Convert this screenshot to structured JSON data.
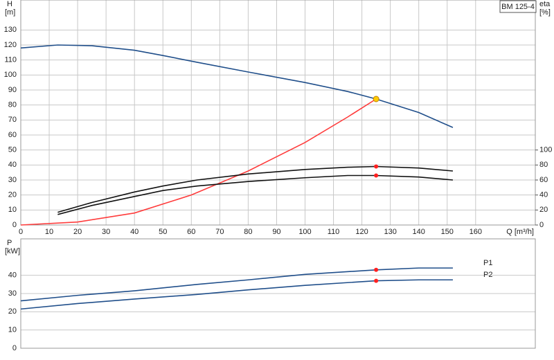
{
  "chart_data": [
    {
      "type": "line",
      "y_label": "H",
      "y_unit": "[m]",
      "y2_label": "eta",
      "y2_unit": "[%]",
      "x_label": "Q [m³/h]",
      "badge": "BM 125-4",
      "xlim": [
        0,
        181
      ],
      "xticks": [
        0,
        10,
        20,
        30,
        40,
        50,
        60,
        70,
        80,
        90,
        100,
        110,
        120,
        130,
        140,
        150,
        160
      ],
      "ylim": [
        0,
        150
      ],
      "yticks": [
        0,
        10,
        20,
        30,
        40,
        50,
        60,
        70,
        80,
        90,
        100,
        110,
        120,
        130
      ],
      "y2lim": [
        0,
        300
      ],
      "y2ticks": [
        0,
        20,
        40,
        60,
        80,
        100
      ],
      "grid": true,
      "series": [
        {
          "color": "#1f4e8a",
          "x": [
            0,
            13,
            25,
            40,
            50,
            62,
            80,
            100,
            115,
            125,
            140,
            152
          ],
          "values": [
            118,
            120,
            119.5,
            116.5,
            113,
            108.5,
            102,
            95,
            89,
            84,
            75,
            65
          ]
        },
        {
          "color": "#ff3b3b",
          "x": [
            0,
            20,
            40,
            60,
            80,
            100,
            115,
            125
          ],
          "values": [
            0,
            2,
            8,
            20,
            36,
            55,
            72,
            84
          ]
        },
        {
          "color": "#111111",
          "axis": "y2",
          "x": [
            13,
            25,
            40,
            50,
            62,
            80,
            100,
            115,
            125,
            140,
            152
          ],
          "values": [
            17,
            30,
            44,
            52,
            60,
            68,
            74,
            77,
            78,
            76,
            72
          ]
        },
        {
          "color": "#111111",
          "axis": "y2",
          "x": [
            13,
            25,
            40,
            50,
            62,
            80,
            100,
            115,
            125,
            140,
            152
          ],
          "values": [
            14,
            26,
            38,
            46,
            52,
            58,
            63,
            66,
            66,
            64,
            60
          ]
        }
      ],
      "markers": [
        {
          "x": 125,
          "y": 84,
          "color": "#ffcc00"
        },
        {
          "x": 125,
          "y": 78,
          "axis": "y2",
          "color": "#ff2020"
        },
        {
          "x": 125,
          "y": 66,
          "axis": "y2",
          "color": "#ff2020"
        }
      ]
    },
    {
      "type": "line",
      "y_label": "P",
      "y_unit": "[kW]",
      "xlim": [
        0,
        181
      ],
      "ylim": [
        0,
        60
      ],
      "yticks": [
        0,
        10,
        20,
        30,
        40
      ],
      "grid": true,
      "series": [
        {
          "name": "P1",
          "color": "#1f4e8a",
          "x": [
            0,
            20,
            40,
            62,
            80,
            100,
            125,
            140,
            152
          ],
          "values": [
            26,
            29,
            31.5,
            35,
            37.5,
            40.5,
            43,
            44,
            44
          ]
        },
        {
          "name": "P2",
          "color": "#1f4e8a",
          "x": [
            0,
            20,
            40,
            62,
            80,
            100,
            125,
            140,
            152
          ],
          "values": [
            21.5,
            24.5,
            27,
            29.5,
            32,
            34.5,
            37,
            37.5,
            37.5
          ]
        }
      ],
      "markers": [
        {
          "x": 125,
          "y": 43,
          "color": "#ff2020"
        },
        {
          "x": 125,
          "y": 37,
          "color": "#ff2020"
        }
      ]
    }
  ]
}
